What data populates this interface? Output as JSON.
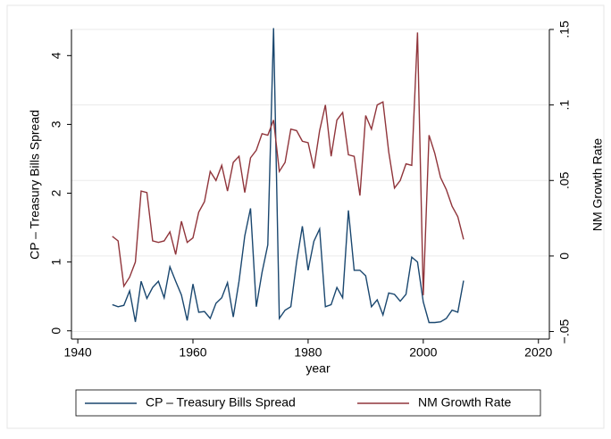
{
  "chart_data": {
    "type": "line",
    "x_label": "year",
    "y_label": "CP – Treasury Bills Spread",
    "y2_label": "NM Growth Rate",
    "x": [
      1946,
      1947,
      1948,
      1949,
      1950,
      1951,
      1952,
      1953,
      1954,
      1955,
      1956,
      1957,
      1958,
      1959,
      1960,
      1961,
      1962,
      1963,
      1964,
      1965,
      1966,
      1967,
      1968,
      1969,
      1970,
      1971,
      1972,
      1973,
      1974,
      1975,
      1976,
      1977,
      1978,
      1979,
      1980,
      1981,
      1982,
      1983,
      1984,
      1985,
      1986,
      1987,
      1988,
      1989,
      1990,
      1991,
      1992,
      1993,
      1994,
      1995,
      1996,
      1997,
      1998,
      1999,
      2000,
      2001,
      2002,
      2003,
      2004,
      2005,
      2006,
      2007
    ],
    "series": [
      {
        "name": "CP – Treasury Bills Spread",
        "color": "#1a476f",
        "axis": "y",
        "values": [
          0.38,
          0.35,
          0.37,
          0.58,
          0.13,
          0.72,
          0.47,
          0.63,
          0.72,
          0.48,
          0.93,
          0.72,
          0.52,
          0.15,
          0.68,
          0.27,
          0.28,
          0.18,
          0.4,
          0.48,
          0.7,
          0.2,
          0.72,
          1.38,
          1.78,
          0.35,
          0.85,
          1.25,
          4.4,
          0.18,
          0.3,
          0.35,
          1.0,
          1.52,
          0.88,
          1.3,
          1.48,
          0.35,
          0.38,
          0.63,
          0.48,
          1.75,
          0.88,
          0.88,
          0.8,
          0.35,
          0.45,
          0.23,
          0.55,
          0.53,
          0.43,
          0.53,
          1.07,
          1.0,
          0.42,
          0.12,
          0.12,
          0.13,
          0.18,
          0.3,
          0.27,
          0.73
        ]
      },
      {
        "name": "NM Growth Rate",
        "color": "#90353b",
        "axis": "y2",
        "values": [
          0.013,
          0.01,
          -0.02,
          -0.014,
          -0.004,
          0.043,
          0.042,
          0.01,
          0.009,
          0.01,
          0.016,
          0.001,
          0.023,
          0.009,
          0.012,
          0.029,
          0.036,
          0.056,
          0.05,
          0.06,
          0.043,
          0.062,
          0.066,
          0.042,
          0.065,
          0.07,
          0.081,
          0.08,
          0.09,
          0.056,
          0.062,
          0.084,
          0.083,
          0.076,
          0.075,
          0.058,
          0.083,
          0.1,
          0.066,
          0.09,
          0.095,
          0.067,
          0.066,
          0.04,
          0.093,
          0.084,
          0.1,
          0.102,
          0.069,
          0.045,
          0.05,
          0.061,
          0.06,
          0.148,
          -0.026,
          0.08,
          0.068,
          0.052,
          0.044,
          0.033,
          0.026,
          0.011
        ]
      }
    ],
    "xlim": [
      1938.9,
      2021.9
    ],
    "xticks": [
      1940,
      1960,
      1980,
      2000,
      2020
    ],
    "ylim": [
      -0.12,
      4.38
    ],
    "yticks": [
      0,
      1,
      2,
      3,
      4
    ],
    "y2lim": [
      -0.055,
      0.15
    ],
    "y2ticks": [
      {
        "value": -0.05,
        "label": "−.05"
      },
      {
        "value": 0,
        "label": "0"
      },
      {
        "value": 0.05,
        "label": ".05"
      },
      {
        "value": 0.1,
        "label": ".1"
      },
      {
        "value": 0.15,
        "label": ".15"
      }
    ],
    "grid": true,
    "legend": "bottom"
  }
}
